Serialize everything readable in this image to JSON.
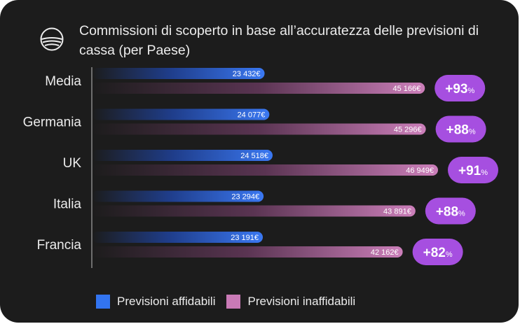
{
  "title": "Commissioni di scoperto in base all’accuratezza delle previsioni di cassa (per Paese)",
  "colors": {
    "background": "#1c1c1c",
    "reliable": "#2f6ff0",
    "unreliable": "#c97ab6",
    "badge": "#a64fe0",
    "text": "#ececec"
  },
  "legend": [
    {
      "label": "Previsioni affidabili",
      "color": "#3274f0"
    },
    {
      "label": "Previsioni inaffidabili",
      "color": "#c97ab6"
    }
  ],
  "chart_data": {
    "type": "bar",
    "orientation": "horizontal",
    "categories": [
      "Media",
      "Germania",
      "UK",
      "Italia",
      "Francia"
    ],
    "series": [
      {
        "name": "Previsioni affidabili",
        "values": [
          23432,
          24077,
          24518,
          23294,
          23191
        ],
        "labels": [
          "23 432€",
          "24 077€",
          "24 518€",
          "23 294€",
          "23 191€"
        ]
      },
      {
        "name": "Previsioni inaffidabili",
        "values": [
          45166,
          45296,
          46949,
          43891,
          42162
        ],
        "labels": [
          "45 166€",
          "45 296€",
          "46 949€",
          "43 891€",
          "42 162€"
        ]
      }
    ],
    "differences": [
      {
        "number": "+93",
        "unit": "%"
      },
      {
        "number": "+88",
        "unit": "%"
      },
      {
        "number": "+91",
        "unit": "%"
      },
      {
        "number": "+88",
        "unit": "%"
      },
      {
        "number": "+82",
        "unit": "%"
      }
    ],
    "xlim": [
      0,
      46949
    ],
    "legend_position": "bottom"
  }
}
